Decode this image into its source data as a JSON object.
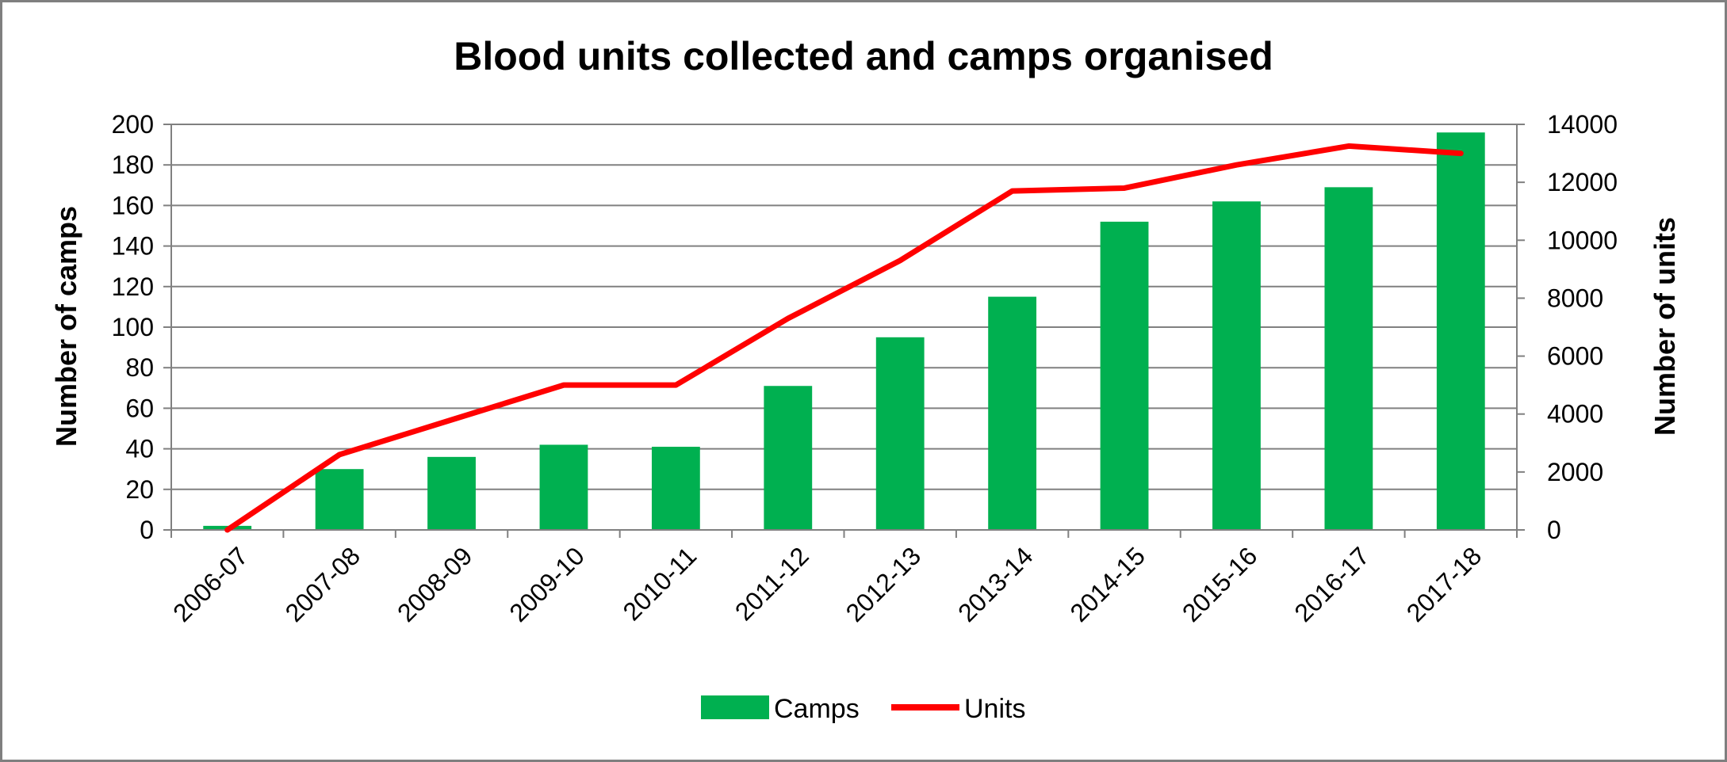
{
  "chart_data": {
    "type": "bar",
    "title": "Blood units collected and camps organised",
    "categories": [
      "2006-07",
      "2007-08",
      "2008-09",
      "2009-10",
      "2010-11",
      "2011-12",
      "2012-13",
      "2013-14",
      "2014-15",
      "2015-16",
      "2016-17",
      "2017-18"
    ],
    "series": [
      {
        "name": "Camps",
        "type": "bar",
        "axis": "left",
        "color": "#00b050",
        "values": [
          2,
          30,
          36,
          42,
          41,
          71,
          95,
          115,
          152,
          162,
          169,
          196
        ]
      },
      {
        "name": "Units",
        "type": "line",
        "axis": "right",
        "color": "#ff0000",
        "values": [
          0,
          2600,
          3800,
          5000,
          5000,
          7300,
          9300,
          11700,
          11800,
          12600,
          13250,
          13000
        ]
      }
    ],
    "ylabel_left": "Number of camps",
    "ylabel_right": "Number of units",
    "ylim_left": [
      0,
      200
    ],
    "yticks_left": [
      "0",
      "20",
      "40",
      "60",
      "80",
      "100",
      "120",
      "140",
      "160",
      "180",
      "200"
    ],
    "ylim_right": [
      0,
      14000
    ],
    "yticks_right": [
      "0",
      "2000",
      "4000",
      "6000",
      "8000",
      "10000",
      "12000",
      "14000"
    ],
    "grid": true,
    "legend_position": "bottom"
  }
}
